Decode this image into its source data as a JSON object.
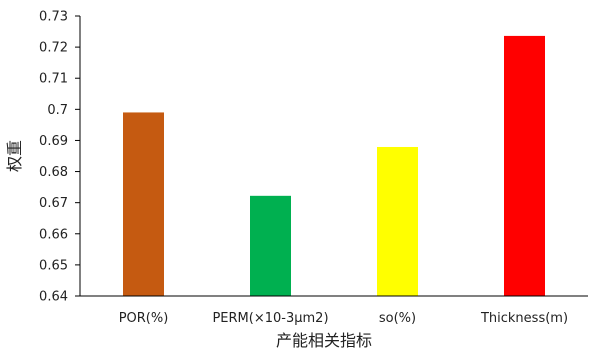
{
  "chart_data": {
    "type": "bar",
    "title": "",
    "xlabel": "产能相关指标",
    "ylabel": "权重",
    "categories": [
      "POR(%)",
      "PERM(×10-3μm2)",
      "so(%)",
      "Thickness(m)"
    ],
    "values": [
      0.699,
      0.6722,
      0.6879,
      0.7236
    ],
    "colors": [
      "#c55a11",
      "#00b050",
      "#ffff00",
      "#ff0000"
    ],
    "ylim": [
      0.64,
      0.73
    ],
    "yticks": [
      "0.64",
      "0.65",
      "0.66",
      "0.67",
      "0.68",
      "0.69",
      "0.7",
      "0.71",
      "0.72",
      "0.73"
    ],
    "grid": false,
    "legend": "none"
  }
}
